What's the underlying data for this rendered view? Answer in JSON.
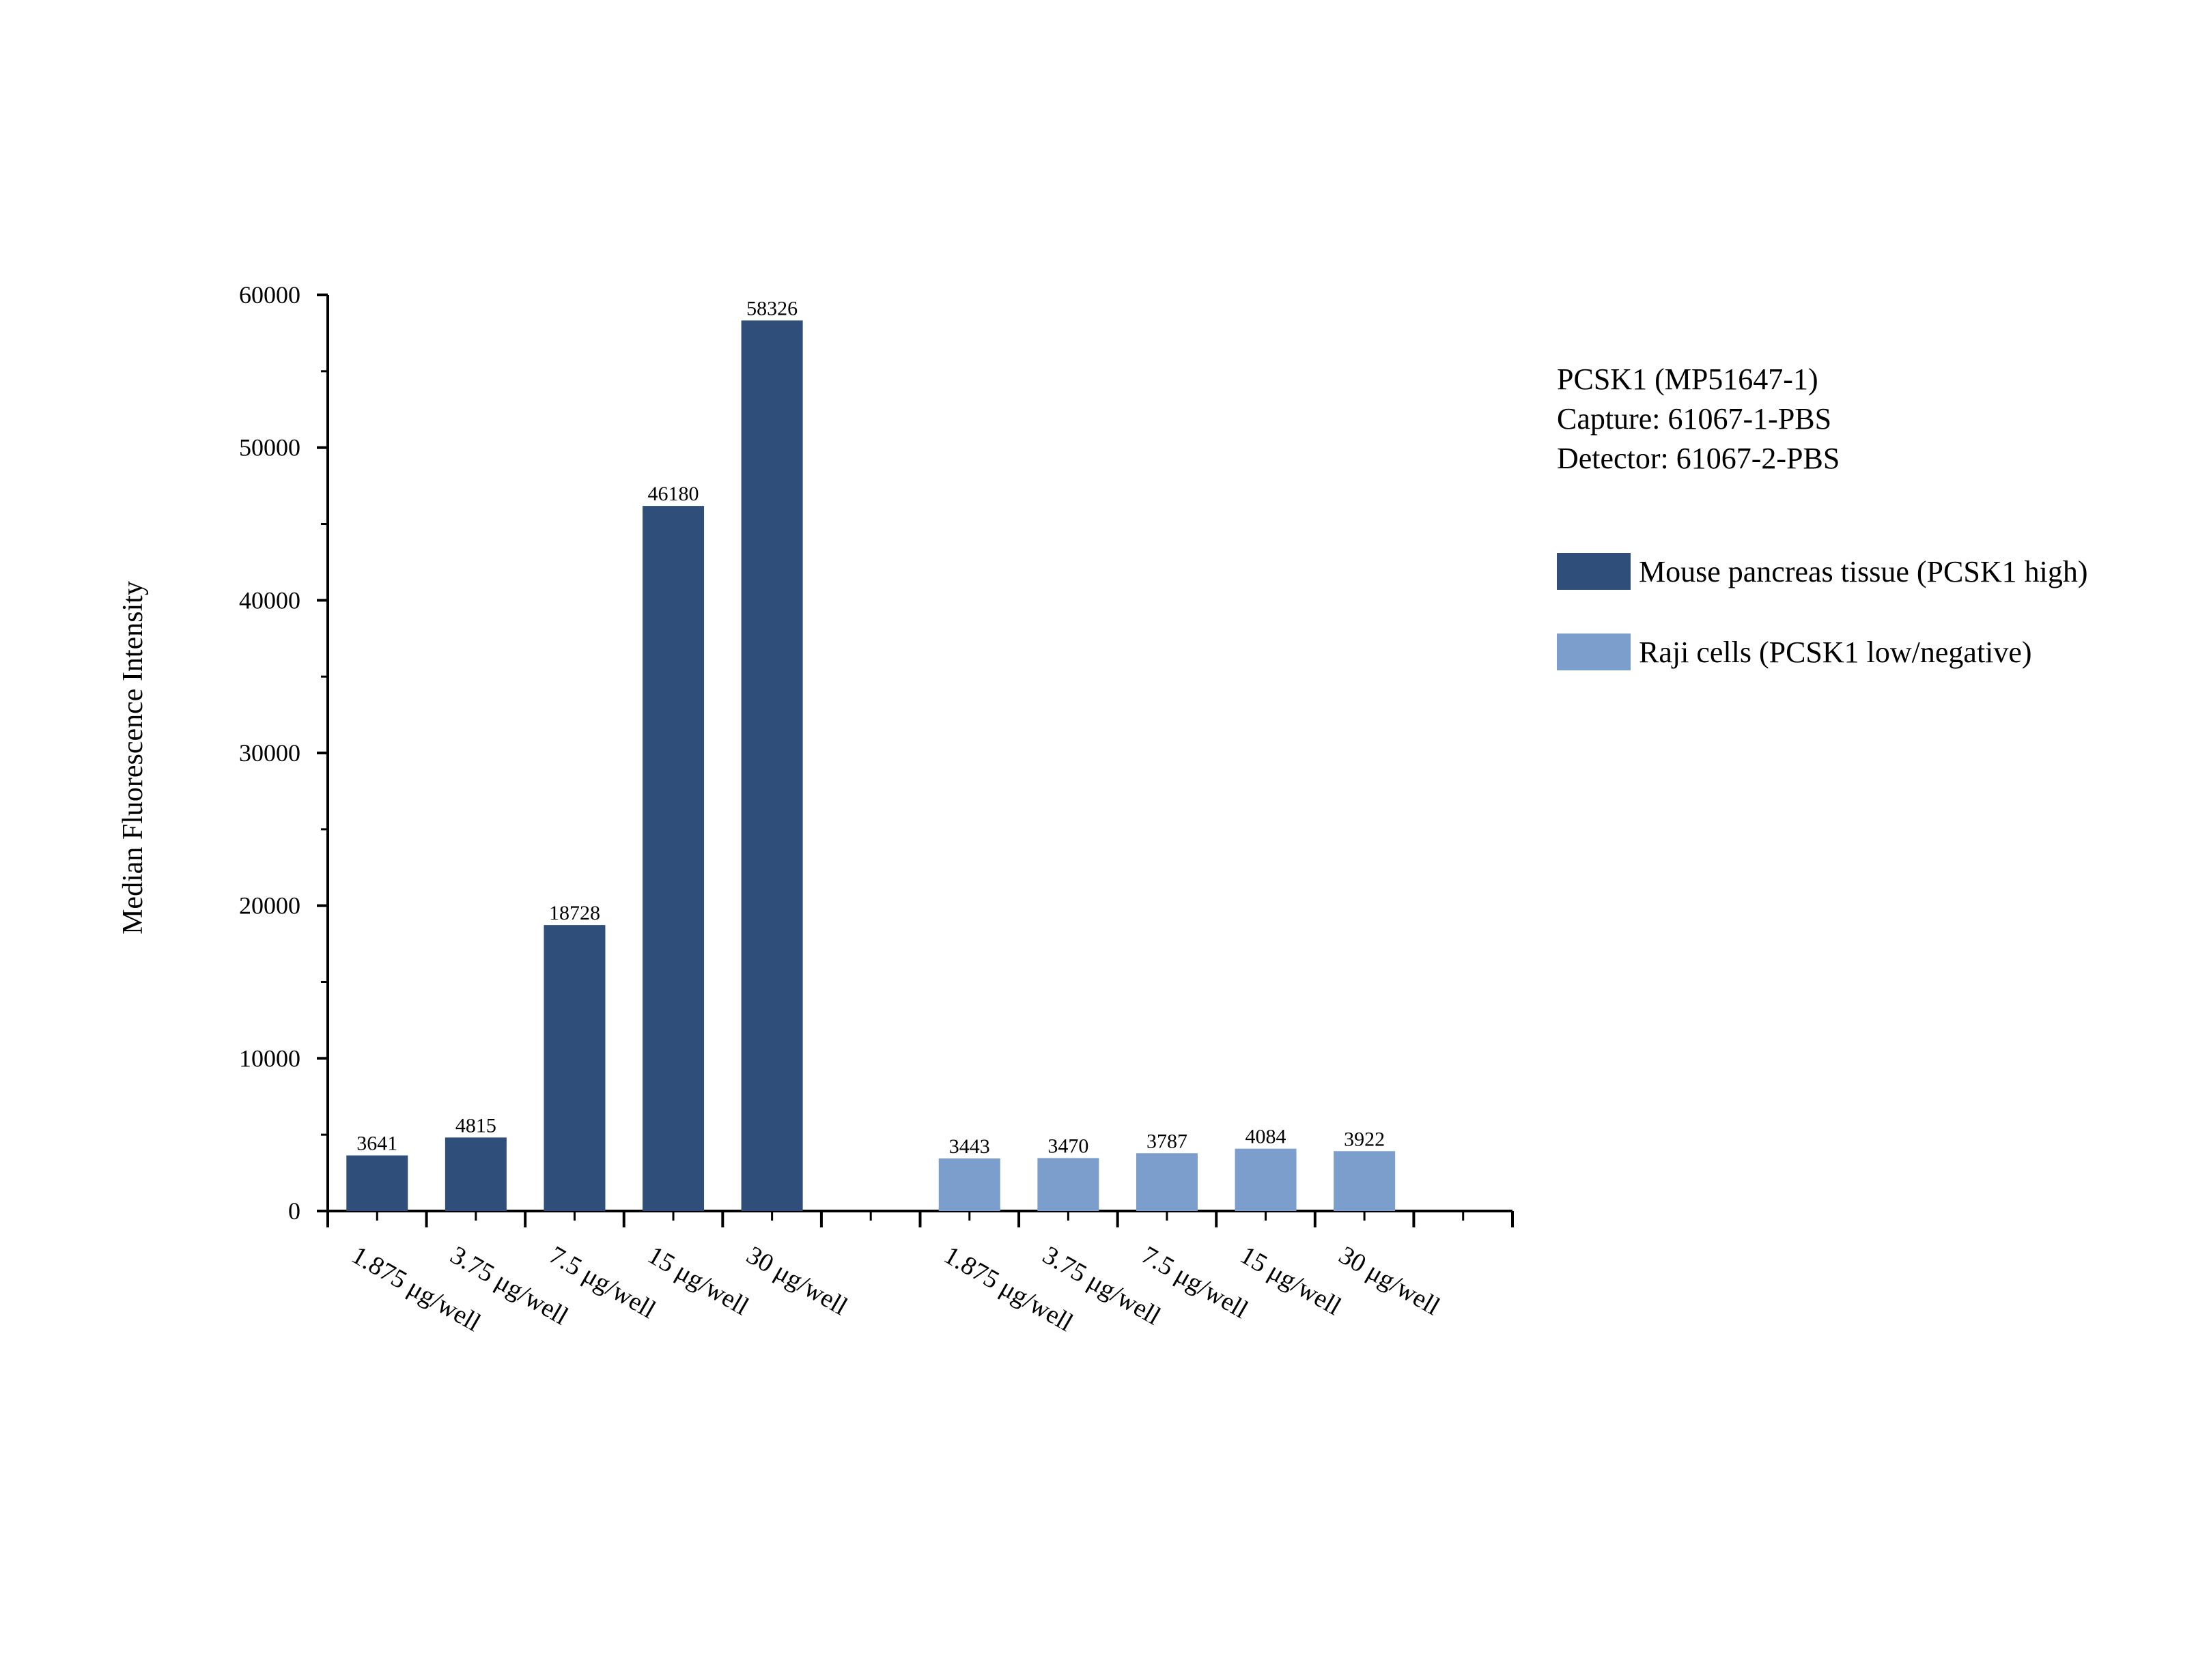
{
  "chart_data": {
    "type": "bar",
    "ylabel": "Median Fluorescence Intensity",
    "xlabel": "",
    "ylim": [
      0,
      60000
    ],
    "yticks": [
      0,
      10000,
      20000,
      30000,
      40000,
      50000,
      60000
    ],
    "ytick_labels": [
      "0",
      "10000",
      "20000",
      "30000",
      "40000",
      "50000",
      "60000"
    ],
    "annotation": [
      "PCSK1 (MP51647-1)",
      "Capture: 61067-1-PBS",
      "Detector: 61067-2-PBS"
    ],
    "legend_position": "right",
    "grid": false,
    "series": [
      {
        "name": "Mouse pancreas tissue (PCSK1 high)",
        "color": "#2f4e7a",
        "categories": [
          "1.875 μg/well",
          "3.75 μg/well",
          "7.5 μg/well",
          "15 μg/well",
          "30 μg/well"
        ],
        "values": [
          3641,
          4815,
          18728,
          46180,
          58326
        ],
        "labels": [
          "3641",
          "4815",
          "18728",
          "46180",
          "58326"
        ]
      },
      {
        "name": "Raji cells (PCSK1 low/negative)",
        "color": "#7c9ecd",
        "categories": [
          "1.875 μg/well",
          "3.75 μg/well",
          "7.5 μg/well",
          "15 μg/well",
          "30 μg/well"
        ],
        "values": [
          3443,
          3470,
          3787,
          4084,
          3922
        ],
        "labels": [
          "3443",
          "3470",
          "3787",
          "4084",
          "3922"
        ]
      }
    ]
  }
}
